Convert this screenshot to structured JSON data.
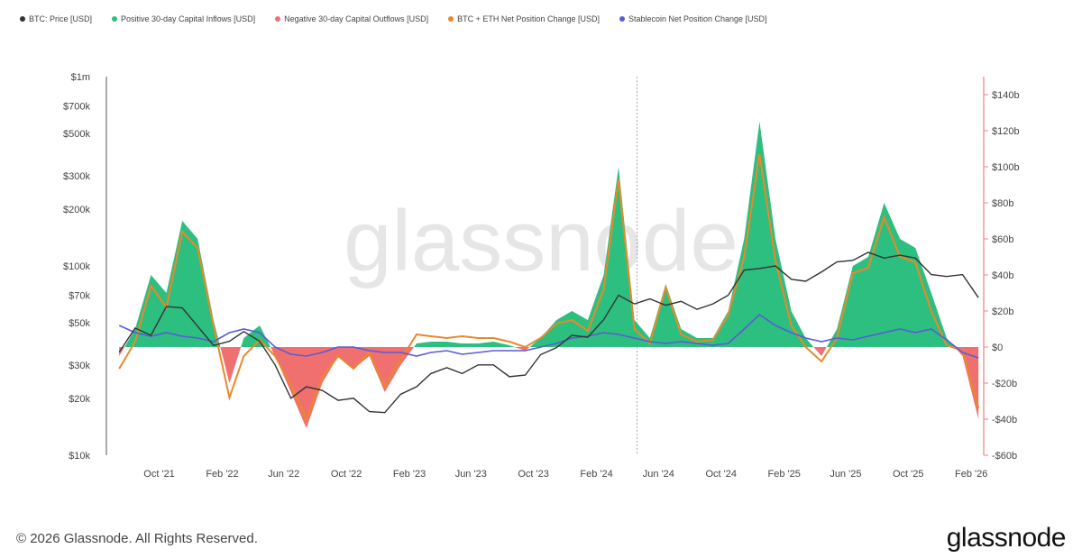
{
  "legend": [
    {
      "label": "BTC: Price [USD]",
      "color": "#333333"
    },
    {
      "label": "Positive 30-day Capital Inflows [USD]",
      "color": "#2dbf7f"
    },
    {
      "label": "Negative 30-day Capital Outflows [USD]",
      "color": "#f07070"
    },
    {
      "label": "BTC + ETH Net Position Change [USD]",
      "color": "#e8892a"
    },
    {
      "label": "Stablecoin Net Position Change [USD]",
      "color": "#5a5ad8"
    }
  ],
  "footer": {
    "copyright": "© 2026 Glassnode. All Rights Reserved.",
    "logo": "glassnode",
    "watermark": "glassnode"
  },
  "chart_data": {
    "type": "area",
    "title": "",
    "left_axis": {
      "scale": "log",
      "range": [
        10000,
        1000000
      ],
      "ticks": [
        "$1m",
        "$700k",
        "$500k",
        "$300k",
        "$200k",
        "$100k",
        "$70k",
        "$50k",
        "$30k",
        "$20k",
        "$10k"
      ],
      "tick_values": [
        1000000,
        700000,
        500000,
        300000,
        200000,
        100000,
        70000,
        50000,
        30000,
        20000,
        10000
      ]
    },
    "right_axis": {
      "scale": "linear",
      "range": [
        -60,
        150
      ],
      "unit": "billion USD",
      "ticks": [
        "$140b",
        "$120b",
        "$100b",
        "$80b",
        "$60b",
        "$40b",
        "$20b",
        "$0",
        "-$20b",
        "-$40b",
        "-$60b"
      ],
      "tick_values": [
        140,
        120,
        100,
        80,
        60,
        40,
        20,
        0,
        -20,
        -40,
        -60
      ]
    },
    "x_ticks": [
      "Oct '21",
      "Feb '22",
      "Jun '22",
      "Oct '22",
      "Feb '23",
      "Jun '23",
      "Oct '23",
      "Feb '24",
      "Jun '24",
      "Oct '24",
      "Feb '25",
      "Jun '25",
      "Oct '25",
      "Feb '26"
    ],
    "x_tick_dates": [
      "2021-10",
      "2022-02",
      "2022-06",
      "2022-10",
      "2023-02",
      "2023-06",
      "2023-10",
      "2024-02",
      "2024-06",
      "2024-10",
      "2025-02",
      "2025-06",
      "2025-10",
      "2026-02"
    ],
    "x_range": [
      "2021-06-20",
      "2026-02-20"
    ],
    "marker_line_date": "2024-04-20",
    "grid": false,
    "legend_position": "top-left",
    "dates": [
      "2021-07",
      "2021-08",
      "2021-09",
      "2021-10",
      "2021-11",
      "2021-12",
      "2022-01",
      "2022-02",
      "2022-03",
      "2022-04",
      "2022-05",
      "2022-06",
      "2022-07",
      "2022-08",
      "2022-09",
      "2022-10",
      "2022-11",
      "2022-12",
      "2023-01",
      "2023-02",
      "2023-03",
      "2023-04",
      "2023-05",
      "2023-06",
      "2023-07",
      "2023-08",
      "2023-09",
      "2023-10",
      "2023-11",
      "2023-12",
      "2024-01",
      "2024-02",
      "2024-03",
      "2024-04",
      "2024-05",
      "2024-06",
      "2024-07",
      "2024-08",
      "2024-09",
      "2024-10",
      "2024-11",
      "2024-12",
      "2025-01",
      "2025-02",
      "2025-03",
      "2025-04",
      "2025-05",
      "2025-06",
      "2025-07",
      "2025-08",
      "2025-09",
      "2025-10",
      "2025-11",
      "2025-12",
      "2026-01",
      "2026-02"
    ],
    "series": [
      {
        "name": "BTC: Price [USD]",
        "axis": "left",
        "values": [
          35000,
          47000,
          43000,
          61000,
          60000,
          48000,
          38000,
          40000,
          45000,
          40000,
          30000,
          20000,
          23000,
          22000,
          19500,
          20000,
          17000,
          16800,
          21000,
          23000,
          27000,
          29000,
          27000,
          30000,
          30000,
          26000,
          26500,
          34000,
          37000,
          43000,
          42000,
          52000,
          70000,
          63000,
          67000,
          62000,
          65000,
          59000,
          63000,
          70000,
          95000,
          97000,
          100000,
          85000,
          83000,
          93000,
          105000,
          107000,
          118000,
          110000,
          114000,
          110000,
          90000,
          88000,
          90000,
          68000
        ]
      },
      {
        "name": "Positive 30-day Capital Inflows / Negative 30-day Capital Outflows [USD]",
        "axis": "right",
        "unit": "billion USD",
        "values": [
          -5,
          10,
          40,
          30,
          70,
          60,
          15,
          -20,
          5,
          12,
          -5,
          -25,
          -45,
          -20,
          -5,
          -12,
          -5,
          -25,
          -10,
          2,
          3,
          3,
          2,
          2,
          3,
          1,
          -2,
          5,
          15,
          20,
          15,
          40,
          100,
          15,
          5,
          35,
          10,
          5,
          5,
          20,
          60,
          125,
          60,
          20,
          5,
          -5,
          10,
          45,
          50,
          80,
          60,
          55,
          30,
          5,
          -5,
          -40
        ]
      },
      {
        "name": "BTC + ETH Net Position Change [USD]",
        "axis": "right",
        "unit": "billion USD",
        "values": [
          -12,
          3,
          34,
          22,
          64,
          55,
          12,
          -28,
          -5,
          4,
          -5,
          -21,
          -40,
          -17,
          -5,
          -12,
          -3,
          -22,
          -7,
          7,
          6,
          5,
          6,
          5,
          5,
          3,
          0,
          5,
          13,
          15,
          9,
          32,
          93,
          10,
          2,
          33,
          7,
          3,
          4,
          18,
          50,
          107,
          48,
          12,
          0,
          -8,
          5,
          41,
          44,
          72,
          50,
          47,
          20,
          1,
          -2,
          -34
        ]
      },
      {
        "name": "Stablecoin Net Position Change [USD]",
        "axis": "right",
        "unit": "billion USD",
        "values": [
          12,
          8,
          6,
          8,
          6,
          5,
          3,
          8,
          10,
          8,
          0,
          -4,
          -5,
          -3,
          0,
          0,
          -2,
          -3,
          -3,
          -5,
          -3,
          -2,
          -4,
          -3,
          -2,
          -2,
          -2,
          0,
          2,
          5,
          6,
          8,
          7,
          5,
          3,
          2,
          3,
          2,
          1,
          2,
          10,
          18,
          12,
          8,
          5,
          3,
          5,
          4,
          6,
          8,
          10,
          8,
          10,
          4,
          -3,
          -6
        ]
      }
    ]
  }
}
